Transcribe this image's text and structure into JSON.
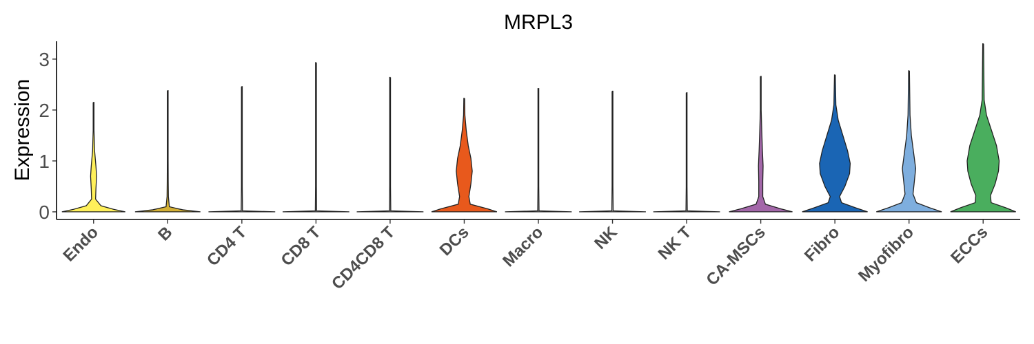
{
  "chart_data": {
    "type": "violin",
    "title": "MRPL3",
    "ylabel": "Expression",
    "xlabel": "",
    "ylim": [
      -0.15,
      3.35
    ],
    "yticks": [
      0,
      1,
      2,
      3
    ],
    "grid": false,
    "legend": "none",
    "categories": [
      "Endo",
      "B",
      "CD4 T",
      "CD8 T",
      "CD4CD8 T",
      "DCs",
      "Macro",
      "NK",
      "NK T",
      "CA-MSCs",
      "Fibro",
      "Myofibro",
      "ECCs"
    ],
    "series": [
      {
        "category": "Endo",
        "color": "#FFF05A",
        "max": 2.15,
        "density": [
          [
            0,
            0.95
          ],
          [
            0.05,
            0.6
          ],
          [
            0.12,
            0.22
          ],
          [
            0.25,
            0.06
          ],
          [
            0.45,
            0.07
          ],
          [
            0.7,
            0.09
          ],
          [
            0.9,
            0.07
          ],
          [
            1.2,
            0.03
          ],
          [
            1.6,
            0.01
          ],
          [
            2.15,
            0.0
          ]
        ]
      },
      {
        "category": "B",
        "color": "#D4B035",
        "max": 2.38,
        "density": [
          [
            0,
            0.98
          ],
          [
            0.04,
            0.45
          ],
          [
            0.1,
            0.05
          ],
          [
            0.3,
            0.02
          ],
          [
            0.6,
            0.015
          ],
          [
            1.0,
            0.01
          ],
          [
            1.6,
            0.005
          ],
          [
            2.38,
            0.0
          ]
        ]
      },
      {
        "category": "CD4 T",
        "color": "#BCBCBC",
        "max": 2.46,
        "density": [
          [
            0,
            1.0
          ],
          [
            0.02,
            0.02
          ],
          [
            0.5,
            0.006
          ],
          [
            1.5,
            0.004
          ],
          [
            2.46,
            0.0
          ]
        ]
      },
      {
        "category": "CD8 T",
        "color": "#BCBCBC",
        "max": 2.93,
        "density": [
          [
            0,
            1.0
          ],
          [
            0.02,
            0.02
          ],
          [
            0.5,
            0.006
          ],
          [
            1.5,
            0.004
          ],
          [
            2.93,
            0.0
          ]
        ]
      },
      {
        "category": "CD4CD8 T",
        "color": "#BCBCBC",
        "max": 2.64,
        "density": [
          [
            0,
            1.0
          ],
          [
            0.02,
            0.02
          ],
          [
            0.5,
            0.006
          ],
          [
            1.5,
            0.004
          ],
          [
            2.64,
            0.0
          ]
        ]
      },
      {
        "category": "DCs",
        "color": "#E8591C",
        "max": 2.23,
        "density": [
          [
            0,
            0.98
          ],
          [
            0.06,
            0.7
          ],
          [
            0.15,
            0.18
          ],
          [
            0.3,
            0.14
          ],
          [
            0.55,
            0.2
          ],
          [
            0.8,
            0.24
          ],
          [
            1.05,
            0.2
          ],
          [
            1.3,
            0.12
          ],
          [
            1.6,
            0.06
          ],
          [
            1.9,
            0.02
          ],
          [
            2.23,
            0.0
          ]
        ]
      },
      {
        "category": "Macro",
        "color": "#BCBCBC",
        "max": 2.42,
        "density": [
          [
            0,
            1.0
          ],
          [
            0.02,
            0.02
          ],
          [
            0.5,
            0.006
          ],
          [
            1.5,
            0.004
          ],
          [
            2.42,
            0.0
          ]
        ]
      },
      {
        "category": "NK",
        "color": "#BCBCBC",
        "max": 2.37,
        "density": [
          [
            0,
            1.0
          ],
          [
            0.02,
            0.02
          ],
          [
            0.5,
            0.006
          ],
          [
            1.5,
            0.004
          ],
          [
            2.37,
            0.0
          ]
        ]
      },
      {
        "category": "NK T",
        "color": "#BCBCBC",
        "max": 2.34,
        "density": [
          [
            0,
            1.0
          ],
          [
            0.02,
            0.02
          ],
          [
            0.5,
            0.006
          ],
          [
            1.5,
            0.004
          ],
          [
            2.34,
            0.0
          ]
        ]
      },
      {
        "category": "CA-MSCs",
        "color": "#A367A9",
        "max": 2.66,
        "density": [
          [
            0,
            0.95
          ],
          [
            0.06,
            0.6
          ],
          [
            0.15,
            0.14
          ],
          [
            0.3,
            0.06
          ],
          [
            0.6,
            0.06
          ],
          [
            0.9,
            0.07
          ],
          [
            1.2,
            0.05
          ],
          [
            1.6,
            0.03
          ],
          [
            2.0,
            0.01
          ],
          [
            2.66,
            0.0
          ]
        ]
      },
      {
        "category": "Fibro",
        "color": "#1A65B4",
        "max": 2.69,
        "density": [
          [
            0,
            0.98
          ],
          [
            0.08,
            0.62
          ],
          [
            0.18,
            0.2
          ],
          [
            0.3,
            0.14
          ],
          [
            0.5,
            0.3
          ],
          [
            0.75,
            0.44
          ],
          [
            0.95,
            0.46
          ],
          [
            1.2,
            0.38
          ],
          [
            1.5,
            0.24
          ],
          [
            1.8,
            0.1
          ],
          [
            2.1,
            0.03
          ],
          [
            2.69,
            0.0
          ]
        ]
      },
      {
        "category": "Myofibro",
        "color": "#7EAEDE",
        "max": 2.77,
        "density": [
          [
            0,
            0.98
          ],
          [
            0.08,
            0.62
          ],
          [
            0.18,
            0.22
          ],
          [
            0.35,
            0.12
          ],
          [
            0.6,
            0.16
          ],
          [
            0.85,
            0.2
          ],
          [
            1.1,
            0.15
          ],
          [
            1.5,
            0.07
          ],
          [
            1.9,
            0.03
          ],
          [
            2.77,
            0.0
          ]
        ]
      },
      {
        "category": "ECCs",
        "color": "#4AAE5E",
        "max": 3.3,
        "density": [
          [
            0,
            0.98
          ],
          [
            0.08,
            0.68
          ],
          [
            0.18,
            0.24
          ],
          [
            0.32,
            0.22
          ],
          [
            0.55,
            0.36
          ],
          [
            0.8,
            0.46
          ],
          [
            1.0,
            0.48
          ],
          [
            1.3,
            0.4
          ],
          [
            1.6,
            0.25
          ],
          [
            1.9,
            0.1
          ],
          [
            2.2,
            0.03
          ],
          [
            3.3,
            0.0
          ]
        ]
      }
    ]
  }
}
